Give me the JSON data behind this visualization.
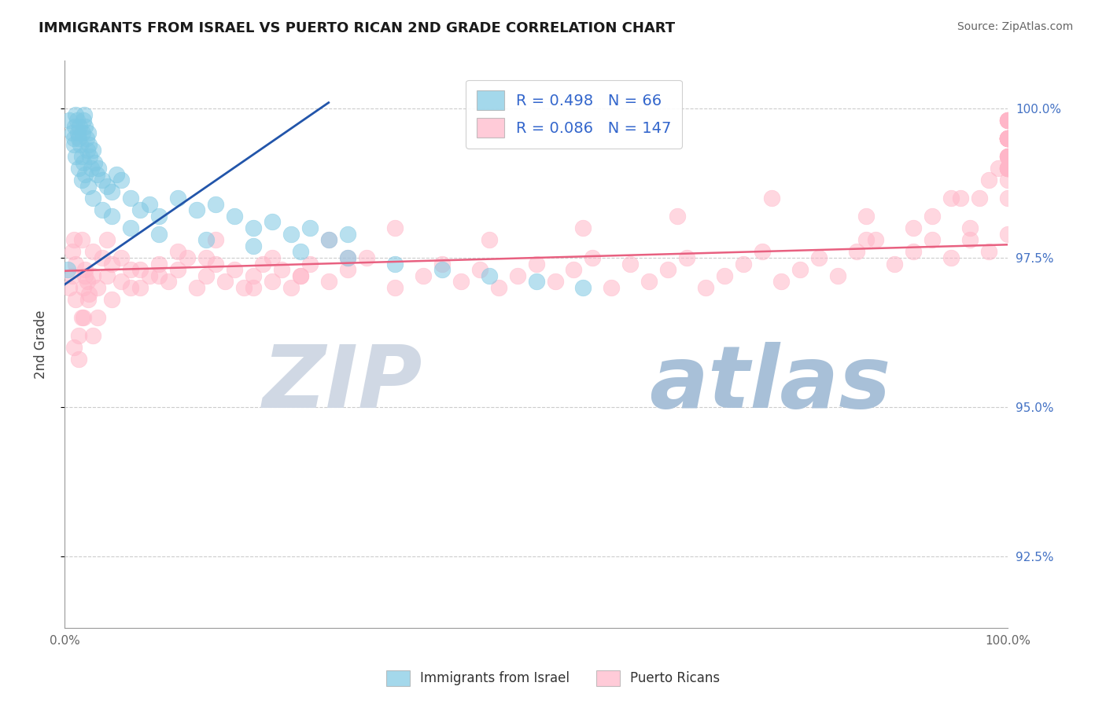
{
  "title": "IMMIGRANTS FROM ISRAEL VS PUERTO RICAN 2ND GRADE CORRELATION CHART",
  "source_text": "Source: ZipAtlas.com",
  "ylabel": "2nd Grade",
  "y_tick_values": [
    92.5,
    95.0,
    97.5,
    100.0
  ],
  "x_min": 0.0,
  "x_max": 100.0,
  "y_min": 91.3,
  "y_max": 100.8,
  "watermark_z": "ZIP",
  "watermark_a": "atlas",
  "watermark_z_color": "#d0d8e4",
  "watermark_a_color": "#a8c0d8",
  "blue_color": "#7ec8e3",
  "pink_color": "#ffb6c8",
  "blue_trend_color": "#2255aa",
  "pink_trend_color": "#e86080",
  "blue_points_x": [
    0.3,
    0.5,
    0.8,
    1.0,
    1.1,
    1.2,
    1.3,
    1.4,
    1.5,
    1.6,
    1.7,
    1.8,
    1.9,
    2.0,
    2.1,
    2.2,
    2.3,
    2.4,
    2.5,
    2.6,
    2.7,
    2.8,
    3.0,
    3.2,
    3.4,
    3.6,
    4.0,
    4.5,
    5.0,
    5.5,
    6.0,
    7.0,
    8.0,
    9.0,
    10.0,
    12.0,
    14.0,
    16.0,
    18.0,
    20.0,
    22.0,
    24.0,
    26.0,
    28.0,
    30.0,
    1.0,
    1.2,
    1.5,
    1.8,
    2.0,
    2.2,
    2.5,
    3.0,
    4.0,
    5.0,
    7.0,
    10.0,
    15.0,
    20.0,
    25.0,
    30.0,
    35.0,
    40.0,
    45.0,
    50.0,
    55.0
  ],
  "blue_points_y": [
    97.3,
    99.8,
    99.6,
    99.5,
    99.7,
    99.9,
    99.8,
    99.6,
    99.5,
    99.7,
    99.4,
    99.2,
    99.6,
    99.8,
    99.9,
    99.7,
    99.5,
    99.3,
    99.6,
    99.4,
    99.2,
    99.0,
    99.3,
    99.1,
    98.9,
    99.0,
    98.8,
    98.7,
    98.6,
    98.9,
    98.8,
    98.5,
    98.3,
    98.4,
    98.2,
    98.5,
    98.3,
    98.4,
    98.2,
    98.0,
    98.1,
    97.9,
    98.0,
    97.8,
    97.9,
    99.4,
    99.2,
    99.0,
    98.8,
    99.1,
    98.9,
    98.7,
    98.5,
    98.3,
    98.2,
    98.0,
    97.9,
    97.8,
    97.7,
    97.6,
    97.5,
    97.4,
    97.3,
    97.2,
    97.1,
    97.0
  ],
  "pink_points_x": [
    0.5,
    0.8,
    1.0,
    1.2,
    1.5,
    1.8,
    2.0,
    2.2,
    2.4,
    2.6,
    3.0,
    3.5,
    4.0,
    4.5,
    5.0,
    6.0,
    7.0,
    8.0,
    9.0,
    10.0,
    11.0,
    12.0,
    13.0,
    14.0,
    15.0,
    16.0,
    17.0,
    18.0,
    19.0,
    20.0,
    21.0,
    22.0,
    23.0,
    24.0,
    25.0,
    26.0,
    28.0,
    30.0,
    32.0,
    35.0,
    38.0,
    40.0,
    42.0,
    44.0,
    46.0,
    48.0,
    50.0,
    52.0,
    54.0,
    56.0,
    58.0,
    60.0,
    62.0,
    64.0,
    66.0,
    68.0,
    70.0,
    72.0,
    74.0,
    76.0,
    78.0,
    80.0,
    82.0,
    84.0,
    86.0,
    88.0,
    90.0,
    92.0,
    94.0,
    96.0,
    98.0,
    100.0,
    1.0,
    1.5,
    2.0,
    2.5,
    3.0,
    3.5,
    5.0,
    7.0,
    10.0,
    15.0,
    20.0,
    25.0,
    30.0,
    0.8,
    1.2,
    1.8,
    2.2,
    3.0,
    4.5,
    6.0,
    8.0,
    12.0,
    16.0,
    22.0,
    28.0,
    35.0,
    45.0,
    55.0,
    65.0,
    75.0,
    85.0,
    95.0,
    85.0,
    90.0,
    92.0,
    94.0,
    96.0,
    97.0,
    98.0,
    99.0,
    100.0,
    100.0,
    100.0,
    100.0,
    100.0,
    100.0,
    100.0,
    100.0,
    100.0,
    100.0,
    100.0,
    100.0,
    100.0,
    100.0,
    100.0,
    100.0,
    100.0,
    100.0,
    100.0,
    100.0,
    100.0,
    100.0,
    100.0,
    100.0,
    100.0,
    100.0,
    100.0,
    100.0,
    100.0,
    100.0,
    100.0,
    100.0,
    100.0,
    100.0,
    100.0
  ],
  "pink_points_y": [
    97.0,
    97.2,
    97.8,
    96.8,
    96.2,
    96.5,
    97.0,
    97.3,
    97.1,
    96.9,
    97.2,
    97.0,
    97.5,
    97.2,
    97.4,
    97.1,
    97.3,
    97.0,
    97.2,
    97.4,
    97.1,
    97.3,
    97.5,
    97.0,
    97.2,
    97.4,
    97.1,
    97.3,
    97.0,
    97.2,
    97.4,
    97.1,
    97.3,
    97.0,
    97.2,
    97.4,
    97.1,
    97.3,
    97.5,
    97.0,
    97.2,
    97.4,
    97.1,
    97.3,
    97.0,
    97.2,
    97.4,
    97.1,
    97.3,
    97.5,
    97.0,
    97.4,
    97.1,
    97.3,
    97.5,
    97.0,
    97.2,
    97.4,
    97.6,
    97.1,
    97.3,
    97.5,
    97.2,
    97.6,
    97.8,
    97.4,
    97.6,
    97.8,
    97.5,
    97.8,
    97.6,
    97.9,
    96.0,
    95.8,
    96.5,
    96.8,
    96.2,
    96.5,
    96.8,
    97.0,
    97.2,
    97.5,
    97.0,
    97.2,
    97.5,
    97.6,
    97.4,
    97.8,
    97.2,
    97.6,
    97.8,
    97.5,
    97.3,
    97.6,
    97.8,
    97.5,
    97.8,
    98.0,
    97.8,
    98.0,
    98.2,
    98.5,
    98.2,
    98.5,
    97.8,
    98.0,
    98.2,
    98.5,
    98.0,
    98.5,
    98.8,
    99.0,
    98.5,
    99.0,
    98.8,
    99.2,
    99.5,
    99.0,
    99.5,
    99.0,
    99.5,
    99.8,
    99.5,
    99.2,
    99.5,
    99.8,
    99.5,
    99.0,
    99.5,
    99.8,
    99.2,
    99.5,
    99.0,
    99.5,
    99.8,
    99.5,
    99.0,
    99.5,
    99.8,
    99.5,
    99.0,
    99.5,
    99.2,
    99.5,
    99.8,
    99.5,
    99.2
  ]
}
